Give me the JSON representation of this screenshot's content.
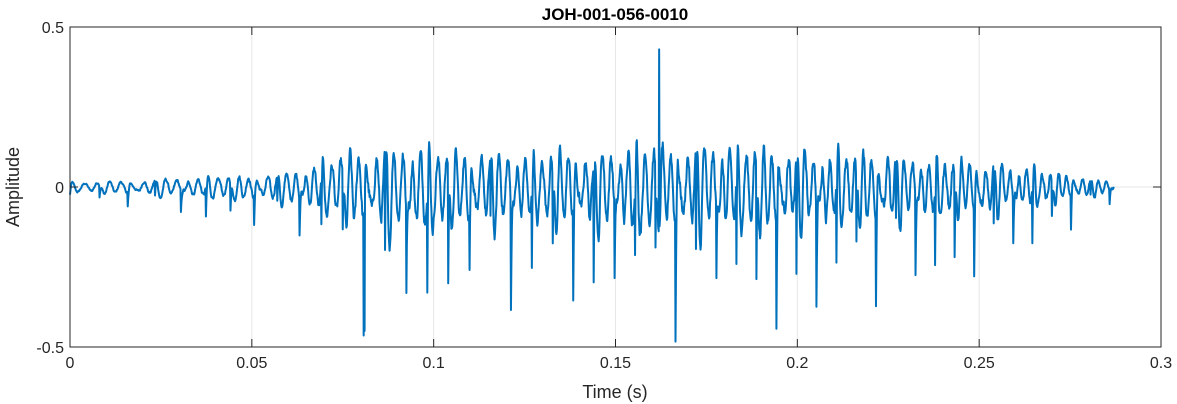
{
  "chart_data": {
    "type": "line",
    "title": "JOH-001-056-0010",
    "xlabel": "Time (s)",
    "ylabel": "Amplitude",
    "xlim": [
      0,
      0.3
    ],
    "ylim": [
      -0.5,
      0.5
    ],
    "x_ticks": [
      0,
      0.05,
      0.1,
      0.15,
      0.2,
      0.25,
      0.3
    ],
    "x_tick_labels": [
      "0",
      "0.05",
      "0.1",
      "0.15",
      "0.2",
      "0.25",
      "0.3"
    ],
    "y_ticks": [
      -0.5,
      0,
      0.5
    ],
    "y_tick_labels": [
      "-0.5",
      "0",
      "0.5"
    ],
    "grid": true,
    "series": [
      {
        "color": "#0072BD",
        "sample_rate_hz": 8000,
        "x_start": 0,
        "x_end": 0.287,
        "envelope": {
          "t": [
            0,
            0.02,
            0.04,
            0.055,
            0.065,
            0.072,
            0.08,
            0.095,
            0.11,
            0.13,
            0.15,
            0.162,
            0.17,
            0.19,
            0.21,
            0.23,
            0.25,
            0.265,
            0.275,
            0.287
          ],
          "a": [
            0.03,
            0.05,
            0.07,
            0.09,
            0.13,
            0.2,
            0.27,
            0.28,
            0.24,
            0.24,
            0.27,
            0.3,
            0.29,
            0.28,
            0.25,
            0.22,
            0.18,
            0.13,
            0.08,
            0.04
          ]
        },
        "fundamental_hz": [
          {
            "t": 0,
            "f": 120
          },
          {
            "t": 0.07,
            "f": 170
          },
          {
            "t": 0.287,
            "f": 190
          }
        ],
        "peak_max": {
          "t": 0.162,
          "value": 0.43
        },
        "peak_min": {
          "t": 0.081,
          "value": -0.45
        }
      }
    ]
  }
}
